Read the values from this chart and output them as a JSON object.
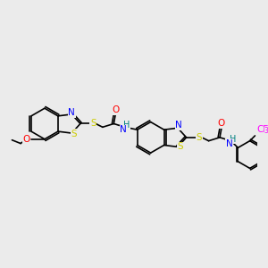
{
  "bg_color": "#ebebeb",
  "fig_width": 3.0,
  "fig_height": 3.0,
  "dpi": 100,
  "atom_colors": {
    "S": "#cccc00",
    "N": "#0000ff",
    "O": "#ff0000",
    "H": "#008080",
    "F": "#ff00ff",
    "C": "#000000"
  },
  "bond_color": "#000000",
  "lw": 1.2
}
